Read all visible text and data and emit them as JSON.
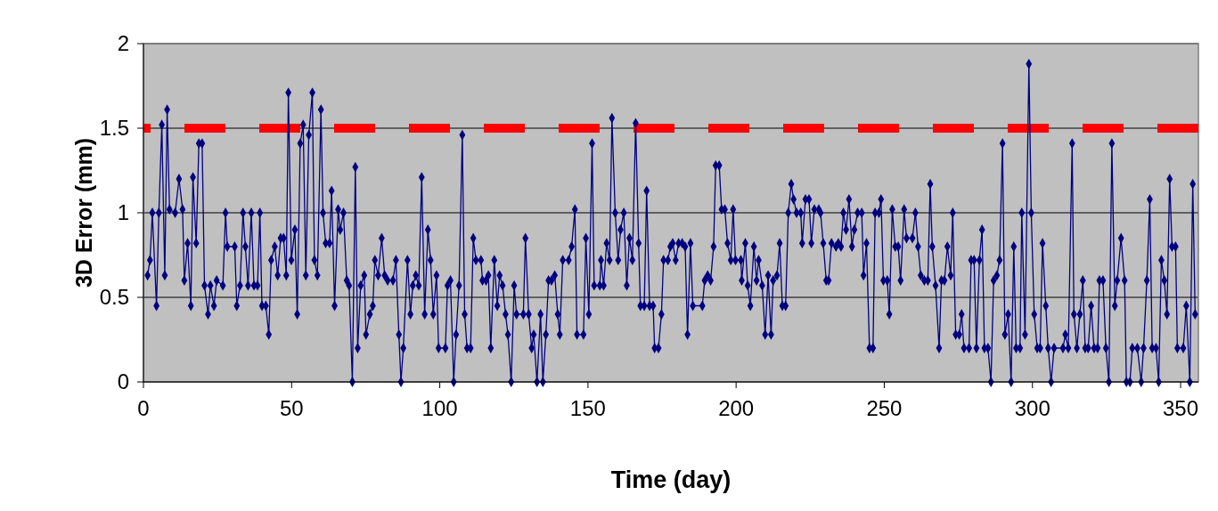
{
  "chart_data": {
    "type": "line",
    "xlabel": "Time (day)",
    "ylabel": "3D Error (mm)",
    "xlim": [
      0,
      356
    ],
    "ylim": [
      0,
      2
    ],
    "xticks": [
      0,
      50,
      100,
      150,
      200,
      250,
      300,
      350
    ],
    "yticks": [
      0,
      0.5,
      1,
      1.5,
      2
    ],
    "grid": "y",
    "marker": "diamond",
    "line_style": "solid",
    "ref_lines": [
      {
        "axis": "y",
        "value": 1.5,
        "color": "#ff0000",
        "line_style": "dashed"
      }
    ],
    "x": [
      1.4,
      2.2,
      3,
      4.4,
      5.2,
      6.2,
      7.2,
      8,
      8.8,
      10.7,
      12,
      13.2,
      13.8,
      14.9,
      16,
      16.7,
      17.8,
      18.7,
      19.8,
      20.6,
      21.8,
      22.6,
      23.8,
      24.7,
      26.8,
      27.7,
      28.3,
      30.8,
      31.5,
      32.6,
      33.6,
      34.4,
      35.3,
      36.4,
      37.3,
      38.5,
      39.3,
      40,
      41.3,
      42.3,
      43.1,
      44.3,
      45.3,
      46.3,
      47.3,
      48.2,
      48.9,
      49.9,
      51.1,
      51.9,
      52.9,
      53.9,
      54.8,
      55.8,
      57,
      57.7,
      58.7,
      59.9,
      60.6,
      61.5,
      62.8,
      63.5,
      64.5,
      65.7,
      66.4,
      67.5,
      68.6,
      69.4,
      70.5,
      71.5,
      72.3,
      73.3,
      74.5,
      75.1,
      76.4,
      77.4,
      78.1,
      79.2,
      80.4,
      81.4,
      82.4,
      84.2,
      85.2,
      86.2,
      86.9,
      87.7,
      89.1,
      90.1,
      90.9,
      91.9,
      92.9,
      93.9,
      94.9,
      96,
      96.9,
      97.8,
      98.9,
      99.6,
      101.9,
      102.6,
      103.6,
      104.7,
      105.5,
      106.5,
      107.6,
      108.4,
      109.2,
      110.4,
      111.3,
      112.2,
      113.9,
      114.4,
      115.6,
      116.4,
      117.2,
      118.4,
      119.4,
      120.2,
      121.2,
      122.2,
      123,
      124.1,
      125.1,
      125.9,
      128.2,
      128.9,
      130,
      131,
      131.7,
      132.8,
      134,
      134.8,
      135.8,
      136.7,
      137.7,
      138.8,
      139.8,
      140.5,
      141.5,
      143.5,
      144.5,
      145.6,
      146.3,
      148.5,
      149.3,
      150.3,
      151.4,
      152.1,
      154,
      154.4,
      155.3,
      156.3,
      157.3,
      158.1,
      159.2,
      160.2,
      161,
      162.1,
      163.1,
      164,
      165,
      166.1,
      167.1,
      167.7,
      169,
      169.8,
      170.8,
      172,
      172.5,
      173.8,
      174.8,
      175.5,
      177,
      177.8,
      178.6,
      179.6,
      180.6,
      181.8,
      182.8,
      183.6,
      184.6,
      185.4,
      188.6,
      189.4,
      190.4,
      191.4,
      192.4,
      193.1,
      194.3,
      195.1,
      196.2,
      197.1,
      198.2,
      199,
      199.8,
      201.6,
      201.9,
      203.1,
      203.9,
      204.8,
      206,
      206.9,
      207.6,
      208.8,
      209.8,
      210.8,
      211.8,
      212.5,
      213.8,
      214.7,
      215.6,
      216.7,
      217.6,
      218.6,
      219.4,
      220.4,
      221.8,
      222.3,
      223.4,
      224.6,
      225.4,
      226.4,
      227.9,
      228.5,
      229.4,
      230.4,
      231.2,
      232.2,
      233.7,
      234.5,
      235.4,
      236.2,
      237.1,
      238.1,
      239.1,
      239.9,
      241,
      242.4,
      243,
      244,
      245,
      246.2,
      246.9,
      248.2,
      248.9,
      249.7,
      251,
      251.7,
      252.7,
      253.7,
      254.7,
      255.5,
      256.7,
      257.5,
      259.5,
      260.5,
      261.4,
      262.3,
      263.5,
      264.7,
      265.5,
      266.2,
      267.3,
      268.5,
      269.3,
      270.3,
      271.3,
      272.4,
      273.1,
      274.1,
      275.3,
      276.1,
      276.9,
      278.6,
      279.3,
      280.3,
      281.1,
      282.1,
      283,
      283.8,
      285,
      286,
      286.9,
      288,
      288.9,
      289.9,
      290.7,
      291.8,
      292.8,
      293.7,
      294.5,
      295.8,
      296.4,
      297.5,
      298.8,
      299.6,
      300.6,
      301.6,
      302.6,
      303.4,
      304.5,
      305.3,
      306.3,
      307.3,
      310.3,
      311.1,
      312.1,
      313.4,
      314,
      315,
      316,
      317,
      317.8,
      318.8,
      319.8,
      320.8,
      322,
      322.6,
      323.8,
      324.8,
      325.8,
      326.8,
      327.8,
      328.6,
      329.9,
      331.1,
      331.7,
      332.9,
      333.7,
      335.4,
      336.7,
      337.5,
      338.6,
      339.6,
      340.4,
      341.7,
      342.6,
      343.5,
      344.5,
      345.4,
      346.3,
      347.1,
      348.3,
      348.9,
      350.9,
      351.9,
      353.1,
      354.1,
      354.9
    ],
    "series": [
      {
        "color": "#000080",
        "values": [
          0.63,
          0.72,
          1,
          0.45,
          1,
          1.52,
          0.63,
          1.61,
          1.02,
          1,
          1.2,
          1.02,
          0.6,
          0.82,
          0.45,
          1.21,
          0.82,
          1.41,
          1.41,
          0.57,
          0.4,
          0.57,
          0.45,
          0.6,
          0.57,
          1,
          0.8,
          0.8,
          0.45,
          0.57,
          1,
          0.8,
          0.57,
          1,
          0.57,
          0.57,
          1,
          0.45,
          0.45,
          0.28,
          0.72,
          0.8,
          0.63,
          0.85,
          0.85,
          0.63,
          1.71,
          0.72,
          0.9,
          0.4,
          1.41,
          1.52,
          0.63,
          1.46,
          1.71,
          0.72,
          0.63,
          1.61,
          1,
          0.82,
          0.82,
          1.13,
          0.45,
          1.02,
          0.9,
          1,
          0.6,
          0.57,
          0,
          1.27,
          0.2,
          0.57,
          0.63,
          0.28,
          0.4,
          0.45,
          0.72,
          0.63,
          0.85,
          0.63,
          0.6,
          0.6,
          0.72,
          0.28,
          0,
          0.2,
          0.72,
          0.4,
          0.57,
          0.63,
          0.57,
          1.21,
          0.4,
          0.9,
          0.72,
          0.4,
          0.63,
          0.2,
          0.2,
          0.57,
          0.6,
          0,
          0.28,
          0.57,
          1.46,
          0.4,
          0.2,
          0.2,
          0.85,
          0.72,
          0.72,
          0.6,
          0.6,
          0.63,
          0.2,
          0.72,
          0.45,
          0.63,
          0.57,
          0.4,
          0.28,
          0,
          0.57,
          0.4,
          0.4,
          0.85,
          0.4,
          0.2,
          0.28,
          0,
          0.4,
          0,
          0.28,
          0.6,
          0.6,
          0.63,
          0.4,
          0.28,
          0.72,
          0.72,
          0.8,
          1.02,
          0.28,
          0.28,
          0.85,
          0.4,
          1.41,
          0.57,
          0.57,
          0.72,
          0.57,
          0.82,
          0.72,
          1.56,
          1,
          0.72,
          0.9,
          1,
          0.57,
          0.85,
          0.72,
          1.53,
          0.82,
          0.45,
          0.45,
          1.13,
          0.45,
          0.45,
          0.2,
          0.2,
          0.4,
          0.72,
          0.72,
          0.8,
          0.82,
          0.72,
          0.82,
          0.82,
          0.8,
          0.28,
          0.82,
          0.45,
          0.45,
          0.6,
          0.63,
          0.6,
          0.8,
          1.28,
          1.28,
          1.02,
          1.02,
          0.82,
          0.72,
          1.02,
          0.72,
          0.72,
          0.6,
          0.82,
          0.57,
          0.45,
          0.8,
          0.6,
          0.72,
          0.57,
          0.28,
          0.63,
          0.28,
          0.6,
          0.63,
          0.82,
          0.45,
          0.45,
          1,
          1.17,
          1.08,
          1,
          1,
          0.82,
          1.08,
          1.08,
          0.82,
          1.02,
          1.02,
          1,
          0.82,
          0.6,
          0.6,
          0.82,
          0.8,
          0.82,
          0.8,
          1,
          0.9,
          1.08,
          0.8,
          0.9,
          1,
          1,
          0.63,
          0.82,
          0.2,
          0.2,
          1,
          1,
          1.08,
          0.6,
          0.6,
          0.4,
          1.02,
          0.8,
          0.8,
          0.6,
          1.02,
          0.85,
          0.85,
          1,
          0.8,
          0.63,
          0.6,
          0.6,
          1.17,
          0.8,
          0.57,
          0.2,
          0.6,
          0.6,
          0.8,
          0.63,
          1,
          0.28,
          0.28,
          0.4,
          0.2,
          0.2,
          0.72,
          0.72,
          0.2,
          0.72,
          0.9,
          0.2,
          0.2,
          0,
          0.6,
          0.63,
          0.72,
          1.41,
          0.28,
          0.4,
          0,
          0.8,
          0.2,
          0.2,
          1,
          0.28,
          1.88,
          1,
          0.4,
          0.2,
          0.2,
          0.82,
          0.45,
          0.2,
          0,
          0.2,
          0.2,
          0.28,
          0.2,
          1.41,
          0.4,
          0.2,
          0.4,
          0.6,
          0.2,
          0.2,
          0.45,
          0.2,
          0.2,
          0.6,
          0.6,
          0.2,
          0,
          1.41,
          0.45,
          0.6,
          0.85,
          0.6,
          0,
          0,
          0.2,
          0.2,
          0,
          0.2,
          0.6,
          1.08,
          0.2,
          0.2,
          0,
          0.72,
          0.6,
          0.4,
          1.2,
          0.8,
          0.8,
          0.2,
          0.2,
          0.45,
          0,
          1.17,
          0.4
        ]
      }
    ]
  }
}
